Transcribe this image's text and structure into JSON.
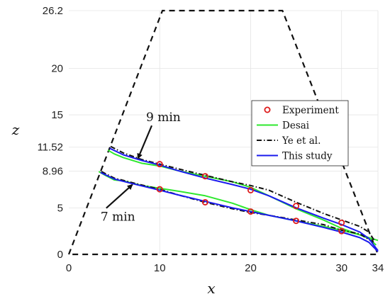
{
  "chart_data": {
    "type": "line",
    "xlabel": "x",
    "ylabel": "z",
    "xlim": [
      0,
      34
    ],
    "ylim": [
      0,
      26.2
    ],
    "x_ticks": [
      "0",
      "10",
      "20",
      "30",
      "34"
    ],
    "x_tick_values": [
      0,
      10,
      20,
      30,
      34
    ],
    "y_ticks": [
      "0",
      "5",
      "8.96",
      "11.52",
      "15",
      "20",
      "26.2"
    ],
    "y_tick_values": [
      0,
      5,
      8.96,
      11.52,
      15,
      20,
      26.2
    ],
    "grid": true,
    "legend_position": "right",
    "dam_outline": {
      "x": [
        0,
        10.3,
        23.5,
        34,
        0
      ],
      "y": [
        0,
        26.2,
        26.2,
        0,
        0
      ]
    },
    "annotations": [
      {
        "text": "9 min",
        "label_x": 8.5,
        "label_y": 14.3,
        "arrow_to_x": 7.6,
        "arrow_to_y": 10.3
      },
      {
        "text": "7 min",
        "label_x": 3.5,
        "label_y": 3.6,
        "arrow_to_x": 7.0,
        "arrow_to_y": 7.5
      }
    ],
    "series": [
      {
        "name": "Experiment",
        "style": "markers",
        "color": "#dd1a1a",
        "groups": [
          {
            "time": "9 min",
            "x": [
              10,
              15,
              20,
              25,
              30
            ],
            "y": [
              9.7,
              8.4,
              6.9,
              5.2,
              3.4
            ]
          },
          {
            "time": "7 min",
            "x": [
              10,
              15,
              20,
              25,
              30
            ],
            "y": [
              7.0,
              5.6,
              4.6,
              3.6,
              2.5
            ]
          }
        ]
      },
      {
        "name": "Desai",
        "style": "solid",
        "color": "#2ee82e",
        "groups": [
          {
            "time": "9 min",
            "x": [
              4.3,
              5,
              6,
              8,
              10,
              12,
              15,
              18,
              20,
              22,
              25,
              28,
              30,
              32,
              33,
              33.8
            ],
            "y": [
              11.2,
              10.8,
              10.4,
              9.8,
              9.5,
              9.0,
              8.4,
              7.8,
              7.2,
              6.3,
              4.9,
              3.7,
              2.8,
              2.1,
              1.7,
              1.0
            ]
          },
          {
            "time": "7 min",
            "x": [
              3.3,
              4,
              5,
              6,
              8,
              10,
              12,
              15,
              18,
              20,
              22,
              25,
              28,
              30,
              32,
              33,
              34
            ],
            "y": [
              8.9,
              8.5,
              8.0,
              7.9,
              7.4,
              7.1,
              6.8,
              6.3,
              5.5,
              4.8,
              4.2,
              3.6,
              3.0,
              2.6,
              2.1,
              1.8,
              1.5
            ]
          }
        ]
      },
      {
        "name": "Ye et al.",
        "style": "dash-dot",
        "color": "#111111",
        "groups": [
          {
            "time": "9 min",
            "x": [
              4.6,
              6,
              8,
              10,
              12,
              15,
              18,
              20,
              22,
              25,
              28,
              30,
              32,
              33,
              33.6
            ],
            "y": [
              11.6,
              10.9,
              10.2,
              9.7,
              9.2,
              8.5,
              7.8,
              7.4,
              6.9,
              5.6,
              4.4,
              3.7,
              3.0,
              2.4,
              1.5
            ]
          },
          {
            "time": "7 min",
            "x": [
              3.6,
              5,
              7,
              10,
              12,
              15,
              18,
              20,
              22,
              25,
              28,
              30,
              32,
              33.5
            ],
            "y": [
              8.9,
              8.2,
              7.7,
              7.0,
              6.4,
              5.6,
              4.9,
              4.5,
              4.2,
              3.7,
              3.2,
              2.6,
              2.2,
              1.3
            ]
          }
        ]
      },
      {
        "name": "This study",
        "style": "solid",
        "color": "#1a1aee",
        "groups": [
          {
            "time": "9 min",
            "x": [
              4.5,
              6,
              8,
              10,
              12,
              15,
              18,
              20,
              22,
              25,
              28,
              30,
              32,
              33,
              34
            ],
            "y": [
              11.4,
              10.7,
              10.1,
              9.6,
              9.0,
              8.2,
              7.5,
              7.0,
              6.3,
              5.0,
              3.9,
              3.2,
              2.4,
              1.7,
              0.4
            ]
          },
          {
            "time": "7 min",
            "x": [
              3.5,
              5,
              7,
              10,
              12,
              15,
              18,
              20,
              22,
              25,
              28,
              30,
              32,
              33,
              34
            ],
            "y": [
              8.8,
              8.1,
              7.6,
              6.9,
              6.4,
              5.7,
              5.0,
              4.6,
              4.2,
              3.6,
              2.9,
              2.4,
              1.8,
              1.3,
              0.3
            ]
          }
        ]
      }
    ]
  }
}
